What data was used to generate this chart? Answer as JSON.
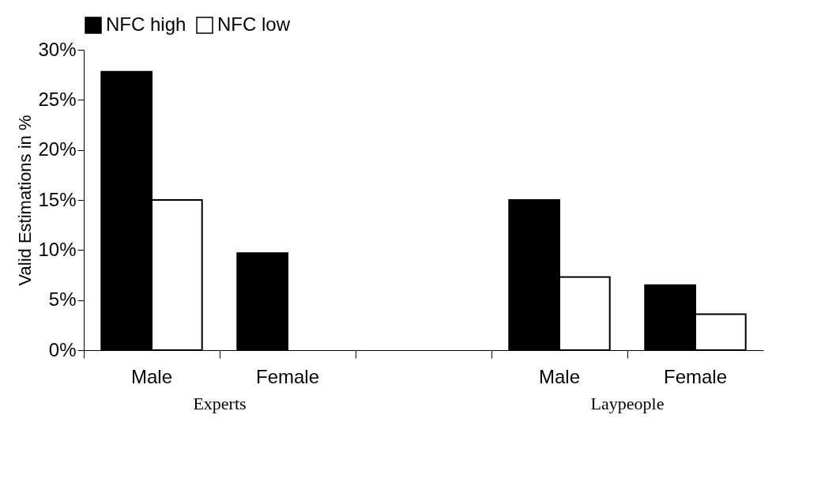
{
  "chart_data": {
    "type": "bar",
    "ylabel": "Valid Estimations in %",
    "categories": [
      "Male",
      "Female",
      null,
      "Male",
      "Female"
    ],
    "series": [
      {
        "name": "NFC high",
        "color": "#000000",
        "values": [
          27.8,
          9.7,
          null,
          15.0,
          6.5
        ]
      },
      {
        "name": "NFC low",
        "color": "#ffffff",
        "values": [
          15.0,
          null,
          null,
          7.3,
          3.6
        ]
      }
    ],
    "ylim": [
      0,
      30
    ],
    "yticks": [
      {
        "value": 0,
        "label": "0%"
      },
      {
        "value": 5,
        "label": "5%"
      },
      {
        "value": 10,
        "label": "10%"
      },
      {
        "value": 15,
        "label": "15%"
      },
      {
        "value": 20,
        "label": "20%"
      },
      {
        "value": 25,
        "label": "25%"
      },
      {
        "value": 30,
        "label": "30%"
      }
    ],
    "grid": false,
    "legend": "top",
    "annotations": [
      "Experts",
      "Laypeople"
    ]
  }
}
